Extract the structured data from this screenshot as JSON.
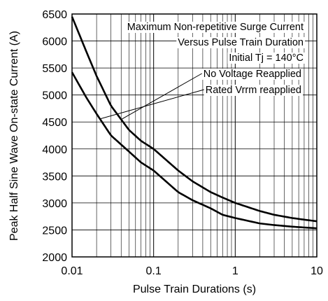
{
  "chart_data": {
    "type": "line",
    "title": "",
    "xlabel": "Pulse Train Durations (s)",
    "ylabel": "Peak Half Sine Wave On-state Current (A)",
    "xscale": "log",
    "xlim": [
      0.01,
      10
    ],
    "ylim": [
      2000,
      6500
    ],
    "grid": true,
    "x_tick_labels": [
      "0.01",
      "0.1",
      "1",
      "10"
    ],
    "y_tick_labels": [
      "2000",
      "2500",
      "3000",
      "3500",
      "4000",
      "4500",
      "5000",
      "5500",
      "6000",
      "6500"
    ],
    "annotations": [
      "Maximum Non-repetitive Surge Current",
      "Versus Pulse Train Duration",
      "Initial Tj = 140°C"
    ],
    "series": [
      {
        "name": "No Voltage Reapplied",
        "x": [
          0.01,
          0.015,
          0.02,
          0.03,
          0.05,
          0.07,
          0.1,
          0.2,
          0.3,
          0.5,
          0.7,
          1,
          2,
          3,
          5,
          7,
          10
        ],
        "y": [
          6450,
          5800,
          5350,
          4800,
          4350,
          4150,
          4000,
          3600,
          3400,
          3200,
          3100,
          3000,
          2850,
          2780,
          2720,
          2690,
          2660
        ]
      },
      {
        "name": "Rated Vrrm reapplied",
        "x": [
          0.01,
          0.015,
          0.02,
          0.03,
          0.05,
          0.07,
          0.1,
          0.2,
          0.3,
          0.5,
          0.7,
          1,
          2,
          3,
          5,
          7,
          10
        ],
        "y": [
          5420,
          4950,
          4650,
          4250,
          3950,
          3750,
          3600,
          3200,
          3050,
          2900,
          2780,
          2720,
          2620,
          2590,
          2560,
          2545,
          2530
        ]
      }
    ]
  }
}
